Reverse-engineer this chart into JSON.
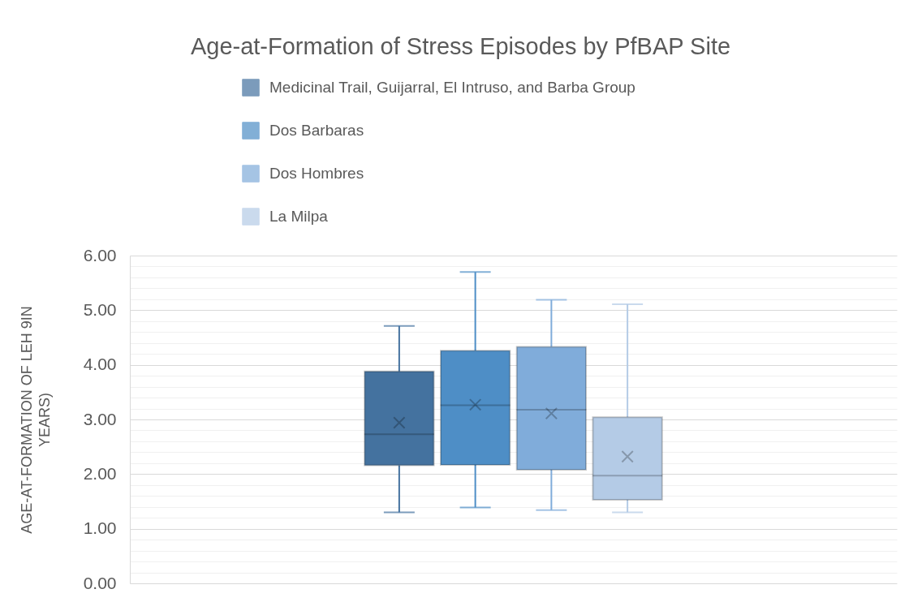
{
  "chart_data": {
    "type": "box",
    "title": "Age-at-Formation of Stress Episodes by PfBAP Site",
    "ylabel": "AGE-AT-FORMATION OF LEH 9IN YEARS)",
    "categories": [
      null
    ],
    "series": [
      {
        "name": "Medicinal Trail, Guijarral, El Intruso, and Barba Group",
        "color": "#44729f",
        "boxes": [
          {
            "low": 1.3,
            "q1": 2.16,
            "median": 2.73,
            "q3": 3.88,
            "high": 4.71,
            "mean": 2.94
          }
        ]
      },
      {
        "name": "Dos Barbaras",
        "color": "#4e8ec6",
        "boxes": [
          {
            "low": 1.39,
            "q1": 2.17,
            "median": 3.26,
            "q3": 4.26,
            "high": 5.7,
            "mean": 3.27
          }
        ]
      },
      {
        "name": "Dos Hombres",
        "color": "#80acda",
        "boxes": [
          {
            "low": 1.34,
            "q1": 2.08,
            "median": 3.18,
            "q3": 4.33,
            "high": 5.19,
            "mean": 3.11
          }
        ]
      },
      {
        "name": "La Milpa",
        "color": "#b4cbe6",
        "boxes": [
          {
            "low": 1.3,
            "q1": 1.53,
            "median": 1.97,
            "q3": 3.04,
            "high": 5.11,
            "mean": 2.32
          }
        ]
      }
    ],
    "ylim": [
      0,
      6
    ],
    "yticks": [
      {
        "value": 0,
        "label": "0.00"
      },
      {
        "value": 0.2,
        "label": null
      },
      {
        "value": 0.4,
        "label": null
      },
      {
        "value": 0.6,
        "label": null
      },
      {
        "value": 0.8,
        "label": null
      },
      {
        "value": 1,
        "label": "1.00"
      },
      {
        "value": 1.2,
        "label": null
      },
      {
        "value": 1.4,
        "label": null
      },
      {
        "value": 1.6,
        "label": null
      },
      {
        "value": 1.8,
        "label": null
      },
      {
        "value": 2,
        "label": "2.00"
      },
      {
        "value": 2.2,
        "label": null
      },
      {
        "value": 2.4,
        "label": null
      },
      {
        "value": 2.6,
        "label": null
      },
      {
        "value": 2.8,
        "label": null
      },
      {
        "value": 3,
        "label": "3.00"
      },
      {
        "value": 3.2,
        "label": null
      },
      {
        "value": 3.4,
        "label": null
      },
      {
        "value": 3.6,
        "label": null
      },
      {
        "value": 3.8,
        "label": null
      },
      {
        "value": 4,
        "label": "4.00"
      },
      {
        "value": 4.2,
        "label": null
      },
      {
        "value": 4.4,
        "label": null
      },
      {
        "value": 4.6,
        "label": null
      },
      {
        "value": 4.8,
        "label": null
      },
      {
        "value": 5,
        "label": "5.00"
      },
      {
        "value": 5.2,
        "label": null
      },
      {
        "value": 5.4,
        "label": null
      },
      {
        "value": 5.6,
        "label": null
      },
      {
        "value": 5.8,
        "label": null
      },
      {
        "value": 6,
        "label": "6.00"
      }
    ],
    "grid": "y",
    "legend": "top",
    "tick_labels": "y"
  }
}
